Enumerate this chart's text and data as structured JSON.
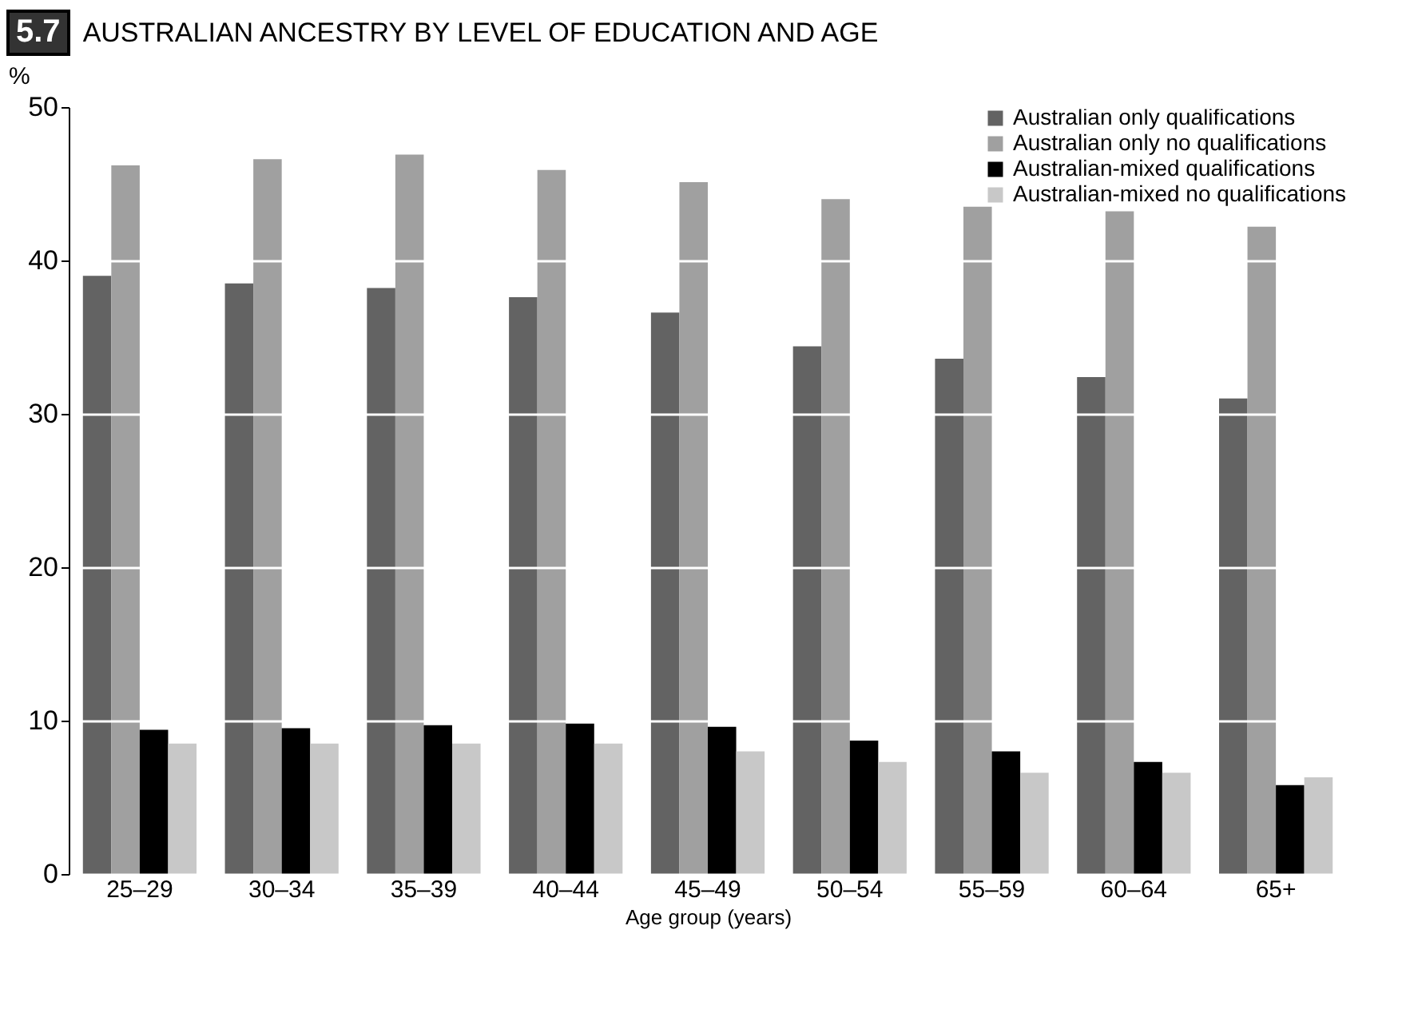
{
  "chart_data": {
    "type": "bar",
    "title": "AUSTRALIAN ANCESTRY BY LEVEL OF EDUCATION AND AGE",
    "annotations": [
      "5.7"
    ],
    "xlabel": "Age group (years)",
    "ylabel": "%",
    "categories": [
      "25–29",
      "30–34",
      "35–39",
      "40–44",
      "45–49",
      "50–54",
      "55–59",
      "60–64",
      "65+"
    ],
    "series": [
      {
        "name": "Australian only qualifications",
        "color": "#636363",
        "values": [
          39.0,
          38.5,
          38.2,
          37.6,
          36.6,
          34.4,
          33.6,
          32.4,
          31.0
        ]
      },
      {
        "name": "Australian only no qualifications",
        "color": "#a0a0a0",
        "values": [
          46.2,
          46.6,
          46.9,
          45.9,
          45.1,
          44.0,
          43.5,
          43.2,
          42.2
        ]
      },
      {
        "name": "Australian-mixed qualifications",
        "color": "#000000",
        "values": [
          9.4,
          9.5,
          9.7,
          9.8,
          9.6,
          8.7,
          8.0,
          7.3,
          5.8
        ]
      },
      {
        "name": "Australian-mixed no qualifications",
        "color": "#c8c8c8",
        "values": [
          8.5,
          8.5,
          8.5,
          8.5,
          8.0,
          7.3,
          6.6,
          6.6,
          6.3
        ]
      }
    ],
    "ylim": [
      0,
      50
    ],
    "yticks": [
      0,
      10,
      20,
      30,
      40,
      50
    ],
    "grid": "y",
    "legend": "top right"
  }
}
